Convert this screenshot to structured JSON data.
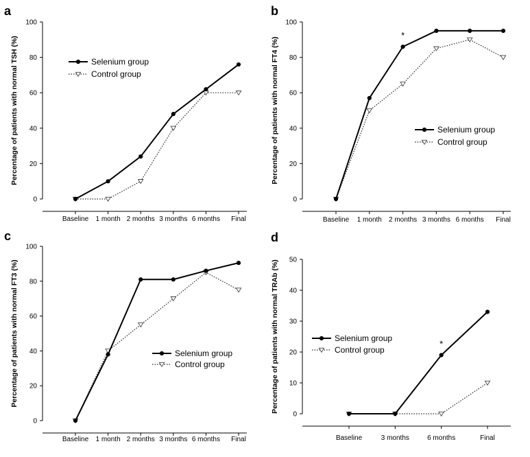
{
  "chart_data": [
    {
      "type": "line",
      "panel": "a",
      "categories": [
        "Baseline",
        "1 month",
        "2 months",
        "3 months",
        "6 months",
        "Final"
      ],
      "ylabel": "Percentage of patients with normal TSH (%)",
      "xlabel": "",
      "ylim": [
        0,
        100
      ],
      "yticks": [
        0,
        20,
        40,
        60,
        80,
        100
      ],
      "legend_position": "upper-left",
      "annotations": [],
      "series": [
        {
          "name": "Selenium group",
          "values": [
            0,
            10,
            24,
            48,
            62,
            76
          ],
          "style": "solid",
          "marker": "filled-circle"
        },
        {
          "name": "Control group",
          "values": [
            0,
            0,
            10,
            40,
            60,
            60
          ],
          "style": "dotted",
          "marker": "open-triangle-down"
        }
      ]
    },
    {
      "type": "line",
      "panel": "b",
      "categories": [
        "Baseline",
        "1 month",
        "2 months",
        "3 months",
        "6 months",
        "Final"
      ],
      "ylabel": "Percentage of patients with normal FT4 (%)",
      "xlabel": "",
      "ylim": [
        0,
        100
      ],
      "yticks": [
        0,
        20,
        40,
        60,
        80,
        100
      ],
      "legend_position": "middle-right",
      "annotations": [
        {
          "text": "*",
          "category": "2 months"
        }
      ],
      "series": [
        {
          "name": "Selenium group",
          "values": [
            0,
            57,
            86,
            95,
            95,
            95
          ],
          "style": "solid",
          "marker": "filled-circle"
        },
        {
          "name": "Control group",
          "values": [
            0,
            50,
            65,
            85,
            90,
            80
          ],
          "style": "dotted",
          "marker": "open-triangle-down"
        }
      ]
    },
    {
      "type": "line",
      "panel": "c",
      "categories": [
        "Baseline",
        "1 month",
        "2 months",
        "3 months",
        "6 months",
        "Final"
      ],
      "ylabel": "Percentage of patients with normal FT3 (%)",
      "xlabel": "",
      "ylim": [
        0,
        100
      ],
      "yticks": [
        0,
        20,
        40,
        60,
        80,
        100
      ],
      "legend_position": "lower-right",
      "annotations": [],
      "series": [
        {
          "name": "Selenium group",
          "values": [
            0,
            38,
            81,
            81,
            86,
            90.5
          ],
          "style": "solid",
          "marker": "filled-circle"
        },
        {
          "name": "Control group",
          "values": [
            0,
            40,
            55,
            70,
            85,
            75
          ],
          "style": "dotted",
          "marker": "open-triangle-down"
        }
      ]
    },
    {
      "type": "line",
      "panel": "d",
      "categories": [
        "Baseline",
        "3 months",
        "6 months",
        "Final"
      ],
      "ylabel": "Percentage of patients with normal TRAb (%)",
      "xlabel": "",
      "ylim": [
        0,
        50
      ],
      "yticks": [
        0,
        10,
        20,
        30,
        40,
        50
      ],
      "legend_position": "middle-left",
      "annotations": [
        {
          "text": "*",
          "category": "6 months"
        }
      ],
      "series": [
        {
          "name": "Selenium group",
          "values": [
            0,
            0,
            19,
            33
          ],
          "style": "solid",
          "marker": "filled-circle"
        },
        {
          "name": "Control group",
          "values": [
            0,
            0,
            0,
            10
          ],
          "style": "dotted",
          "marker": "open-triangle-down"
        }
      ]
    }
  ]
}
